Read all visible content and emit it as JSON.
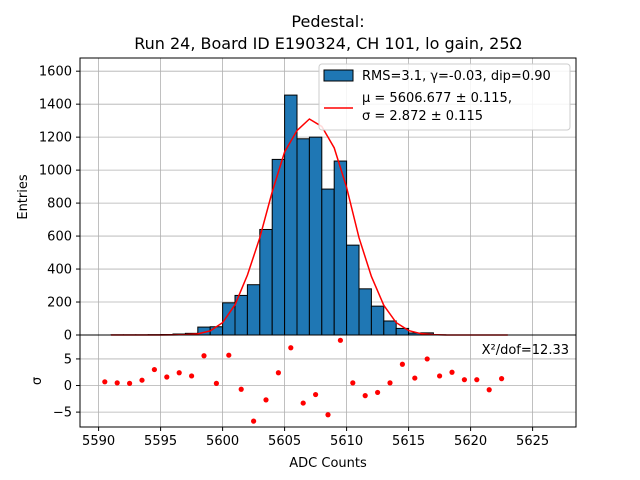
{
  "chart_data": {
    "type": "histogram",
    "title_line1": "Pedestal:",
    "title_line2": "Run 24, Board ID E190324, CH 101, lo gain, 25Ω",
    "xlabel": "ADC Counts",
    "ylabel_top": "Entries",
    "ylabel_bottom": "σ",
    "xlim": [
      5588.5,
      5628.5
    ],
    "x_ticks": [
      5590,
      5595,
      5600,
      5605,
      5610,
      5615,
      5620,
      5625
    ],
    "top_ylim": [
      0,
      1680
    ],
    "top_y_ticks": [
      0,
      200,
      400,
      600,
      800,
      1000,
      1200,
      1400,
      1600
    ],
    "bottom_ylim": [
      -7.8,
      9.5
    ],
    "bottom_y_ticks": [
      -5,
      0,
      5
    ],
    "grid": true,
    "bar_color": "#1f77b4",
    "fit_color": "#ff0000",
    "histogram": {
      "bin_width": 1,
      "left_edges": [
        5591,
        5592,
        5593,
        5594,
        5595,
        5596,
        5597,
        5598,
        5599,
        5600,
        5601,
        5602,
        5603,
        5604,
        5605,
        5606,
        5607,
        5608,
        5609,
        5610,
        5611,
        5612,
        5613,
        5614,
        5615,
        5616,
        5617,
        5618,
        5619,
        5620,
        5621,
        5622
      ],
      "counts": [
        1,
        1,
        1,
        2,
        3,
        6,
        10,
        48,
        50,
        195,
        240,
        305,
        640,
        1065,
        1455,
        1190,
        1200,
        885,
        1055,
        545,
        280,
        175,
        85,
        40,
        12,
        13,
        1,
        0,
        0,
        0,
        0,
        0
      ]
    },
    "fit_curve": {
      "x": [
        5591,
        5592,
        5593,
        5594,
        5595,
        5596,
        5597,
        5598,
        5599,
        5600,
        5601,
        5602,
        5603,
        5604,
        5605,
        5606,
        5607,
        5608,
        5609,
        5610,
        5611,
        5612,
        5613,
        5614,
        5615,
        5616,
        5617,
        5618,
        5619,
        5620,
        5621,
        5622,
        5623
      ],
      "y": [
        0,
        0,
        0,
        0,
        0,
        1,
        2,
        7,
        25,
        75,
        183,
        363,
        590,
        868,
        1110,
        1240,
        1310,
        1265,
        1135,
        895,
        590,
        355,
        180,
        75,
        27,
        8,
        2,
        0,
        0,
        0,
        0,
        0,
        0
      ]
    },
    "residuals": {
      "x": [
        5590.5,
        5591.5,
        5592.5,
        5593.5,
        5594.5,
        5595.5,
        5596.5,
        5597.5,
        5598.5,
        5599.5,
        5600.5,
        5601.5,
        5602.5,
        5603.5,
        5604.5,
        5605.5,
        5606.5,
        5607.5,
        5608.5,
        5609.5,
        5610.5,
        5611.5,
        5612.5,
        5613.5,
        5614.5,
        5615.5,
        5616.5,
        5617.5,
        5618.5,
        5619.5,
        5620.5,
        5621.5,
        5622.5
      ],
      "y": [
        0.7,
        0.5,
        0.4,
        1.0,
        3.0,
        1.6,
        2.4,
        1.8,
        5.6,
        0.4,
        5.7,
        -0.7,
        -6.7,
        -2.7,
        2.4,
        7.1,
        -3.3,
        -1.7,
        -5.5,
        8.5,
        0.5,
        -1.9,
        -1.3,
        0.5,
        4.0,
        1.4,
        5.0,
        1.8,
        2.5,
        1.1,
        1.1,
        -0.8,
        1.3
      ]
    },
    "legend": {
      "hist_label": "RMS=3.1, γ=-0.03, dip=0.90",
      "fit_label_line1": "μ = 5606.677 ± 0.115,",
      "fit_label_line2": "σ = 2.872 ± 0.115",
      "placement": "top-right"
    },
    "chi2_annotation": "X²/dof=12.33"
  }
}
